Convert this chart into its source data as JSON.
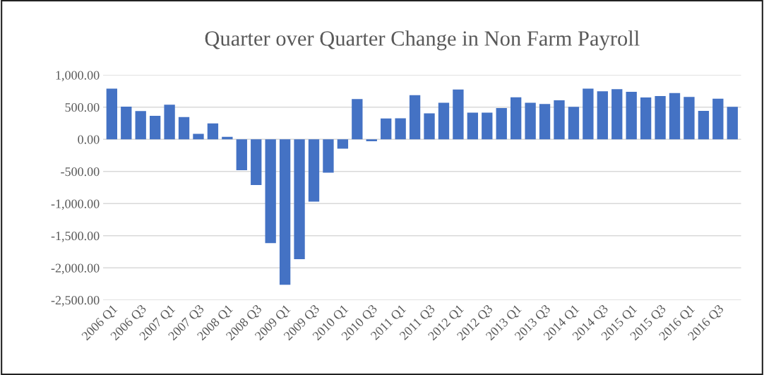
{
  "chart_data": {
    "type": "bar",
    "title": "Quarter over Quarter Change in Non Farm Payroll",
    "categories": [
      "2006 Q1",
      null,
      "2006 Q3",
      null,
      "2007 Q1",
      null,
      "2007 Q3",
      null,
      "2008 Q1",
      null,
      "2008 Q3",
      null,
      "2009 Q1",
      null,
      "2009 Q3",
      null,
      "2010 Q1",
      null,
      "2010 Q3",
      null,
      "2011 Q1",
      null,
      "2011 Q3",
      null,
      "2012 Q1",
      null,
      "2012 Q3",
      null,
      "2013 Q1",
      null,
      "2013 Q3",
      null,
      "2014 Q1",
      null,
      "2014 Q3",
      null,
      "2015 Q1",
      null,
      "2015 Q3",
      null,
      "2016 Q1",
      null,
      "2016 Q3",
      null
    ],
    "values": [
      788,
      508,
      438,
      365,
      538,
      346,
      85,
      246,
      38,
      -481,
      -712,
      -1615,
      -2262,
      -1865,
      -969,
      -519,
      -146,
      627,
      -31,
      323,
      327,
      685,
      404,
      569,
      773,
      415,
      415,
      485,
      654,
      569,
      550,
      608,
      504,
      788,
      746,
      781,
      738,
      650,
      673,
      719,
      658,
      442,
      631,
      504
    ],
    "color": "#4472c4",
    "ylim": [
      -2500,
      1000
    ],
    "yticks": [
      {
        "value": -2500,
        "label": "-2,500.00"
      },
      {
        "value": -2000,
        "label": "-2,000.00"
      },
      {
        "value": -1500,
        "label": "-1,500.00"
      },
      {
        "value": -1000,
        "label": "-1,000.00"
      },
      {
        "value": -500,
        "label": "-500.00"
      },
      {
        "value": 0,
        "label": "0.00"
      },
      {
        "value": 500,
        "label": "500.00"
      },
      {
        "value": 1000,
        "label": "1,000.00"
      }
    ],
    "grid": "y"
  }
}
